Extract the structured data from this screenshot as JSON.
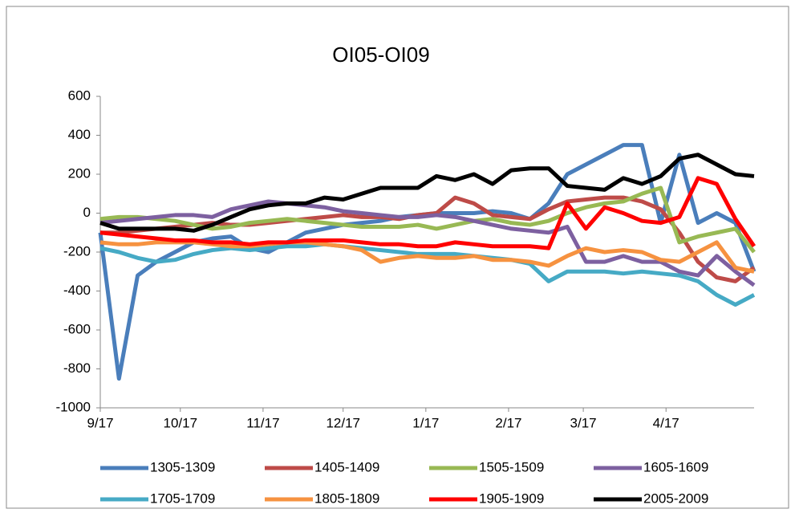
{
  "chart_data": {
    "type": "line",
    "title": "OI05-OI09",
    "x": [
      0,
      7,
      14,
      21,
      28,
      35,
      42,
      49,
      56,
      63,
      70,
      77,
      84,
      91,
      98,
      105,
      112,
      119,
      126,
      133,
      140,
      147,
      154,
      161,
      168,
      175,
      182,
      189,
      196,
      203,
      210,
      217,
      224,
      231,
      238,
      245
    ],
    "xlim": [
      0,
      245
    ],
    "xticks": [
      {
        "value": 0,
        "label": "9/17"
      },
      {
        "value": 30,
        "label": "10/17"
      },
      {
        "value": 61,
        "label": "11/17"
      },
      {
        "value": 91,
        "label": "12/17"
      },
      {
        "value": 122,
        "label": "1/17"
      },
      {
        "value": 153,
        "label": "2/17"
      },
      {
        "value": 181,
        "label": "3/17"
      },
      {
        "value": 212,
        "label": "4/17"
      }
    ],
    "ylim": [
      -1000,
      600
    ],
    "yticks": [
      -1000,
      -800,
      -600,
      -400,
      -200,
      0,
      200,
      400,
      600
    ],
    "grid": false,
    "legend": "bottom",
    "series": [
      {
        "name": "1305-1309",
        "color": "#4a7ebb",
        "values": [
          -100,
          -850,
          -320,
          -250,
          -200,
          -150,
          -130,
          -120,
          -180,
          -200,
          -150,
          -100,
          -80,
          -60,
          -50,
          -40,
          -20,
          -10,
          0,
          0,
          0,
          10,
          0,
          -30,
          50,
          200,
          250,
          300,
          350,
          350,
          -50,
          300,
          -50,
          0,
          -50,
          -300
        ]
      },
      {
        "name": "1405-1409",
        "color": "#be4b48",
        "values": [
          -100,
          -100,
          -90,
          -80,
          -70,
          -60,
          -50,
          -60,
          -60,
          -50,
          -40,
          -30,
          -20,
          -10,
          -20,
          -20,
          -30,
          -10,
          0,
          80,
          50,
          -10,
          -20,
          -30,
          20,
          60,
          70,
          80,
          80,
          60,
          20,
          -100,
          -250,
          -330,
          -350,
          -280
        ]
      },
      {
        "name": "1505-1509",
        "color": "#98b954",
        "values": [
          -30,
          -20,
          -20,
          -30,
          -40,
          -60,
          -80,
          -70,
          -50,
          -40,
          -30,
          -40,
          -50,
          -60,
          -70,
          -70,
          -70,
          -60,
          -80,
          -60,
          -40,
          -30,
          -50,
          -60,
          -40,
          0,
          30,
          50,
          60,
          100,
          130,
          -150,
          -120,
          -100,
          -80,
          -200
        ]
      },
      {
        "name": "1605-1609",
        "color": "#7d60a0",
        "values": [
          -50,
          -40,
          -30,
          -20,
          -10,
          -10,
          -20,
          20,
          40,
          60,
          50,
          40,
          30,
          10,
          0,
          -10,
          -20,
          -20,
          -10,
          -20,
          -40,
          -60,
          -80,
          -90,
          -100,
          -70,
          -250,
          -250,
          -220,
          -250,
          -250,
          -300,
          -320,
          -220,
          -300,
          -370
        ]
      },
      {
        "name": "1705-1709",
        "color": "#46aac5",
        "values": [
          -180,
          -200,
          -230,
          -250,
          -240,
          -210,
          -190,
          -180,
          -190,
          -180,
          -170,
          -170,
          -160,
          -170,
          -180,
          -190,
          -200,
          -210,
          -210,
          -210,
          -220,
          -230,
          -240,
          -260,
          -350,
          -300,
          -300,
          -300,
          -310,
          -300,
          -310,
          -320,
          -350,
          -420,
          -470,
          -420
        ]
      },
      {
        "name": "1805-1809",
        "color": "#f69240",
        "values": [
          -150,
          -160,
          -160,
          -150,
          -150,
          -150,
          -160,
          -170,
          -170,
          -160,
          -150,
          -150,
          -160,
          -170,
          -190,
          -250,
          -230,
          -220,
          -230,
          -230,
          -220,
          -240,
          -240,
          -250,
          -270,
          -220,
          -180,
          -200,
          -190,
          -200,
          -240,
          -250,
          -200,
          -150,
          -280,
          -300
        ]
      },
      {
        "name": "1905-1909",
        "color": "#ff0000",
        "values": [
          -100,
          -110,
          -120,
          -130,
          -140,
          -140,
          -150,
          -150,
          -160,
          -150,
          -150,
          -140,
          -140,
          -140,
          -150,
          -160,
          -160,
          -170,
          -170,
          -150,
          -160,
          -170,
          -170,
          -170,
          -180,
          50,
          -80,
          30,
          0,
          -40,
          -50,
          -20,
          180,
          150,
          -30,
          -170
        ]
      },
      {
        "name": "2005-2009",
        "color": "#000000",
        "values": [
          -50,
          -80,
          -80,
          -80,
          -80,
          -90,
          -60,
          -20,
          20,
          40,
          50,
          50,
          80,
          70,
          100,
          130,
          130,
          130,
          190,
          170,
          200,
          150,
          220,
          230,
          230,
          140,
          130,
          120,
          180,
          150,
          190,
          280,
          300,
          250,
          200,
          190
        ]
      }
    ]
  }
}
